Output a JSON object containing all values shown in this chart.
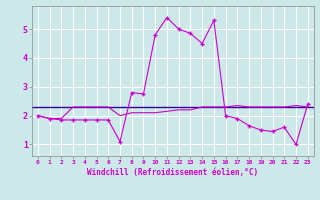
{
  "background_color": "#cce8e8",
  "grid_color": "#ffffff",
  "line_color": "#cc00cc",
  "hline_color": "#330099",
  "xlabel": "Windchill (Refroidissement éolien,°C)",
  "xlim": [
    -0.5,
    23.5
  ],
  "ylim": [
    0.6,
    5.8
  ],
  "yticks": [
    1,
    2,
    3,
    4,
    5
  ],
  "xticks": [
    0,
    1,
    2,
    3,
    4,
    5,
    6,
    7,
    8,
    9,
    10,
    11,
    12,
    13,
    14,
    15,
    16,
    17,
    18,
    19,
    20,
    21,
    22,
    23
  ],
  "series1_x": [
    0,
    1,
    2,
    3,
    4,
    5,
    6,
    7,
    8,
    9,
    10,
    11,
    12,
    13,
    14,
    15,
    16,
    17,
    18,
    19,
    20,
    21,
    22,
    23
  ],
  "series1_y": [
    2.0,
    1.9,
    1.9,
    2.3,
    2.3,
    2.3,
    2.3,
    2.0,
    2.1,
    2.1,
    2.1,
    2.15,
    2.2,
    2.2,
    2.3,
    2.3,
    2.3,
    2.35,
    2.3,
    2.3,
    2.3,
    2.3,
    2.35,
    2.3
  ],
  "series2_x": [
    0,
    1,
    2,
    3,
    4,
    5,
    6,
    7,
    8,
    9,
    10,
    11,
    12,
    13,
    14,
    15,
    16,
    17,
    18,
    19,
    20,
    21,
    22,
    23
  ],
  "series2_y": [
    2.0,
    1.9,
    1.85,
    1.85,
    1.85,
    1.85,
    1.85,
    1.1,
    2.8,
    2.75,
    4.8,
    5.4,
    5.0,
    4.85,
    4.5,
    5.3,
    2.0,
    1.9,
    1.65,
    1.5,
    1.45,
    1.6,
    1.0,
    2.4
  ],
  "hline_y": 2.3,
  "marker": "+"
}
